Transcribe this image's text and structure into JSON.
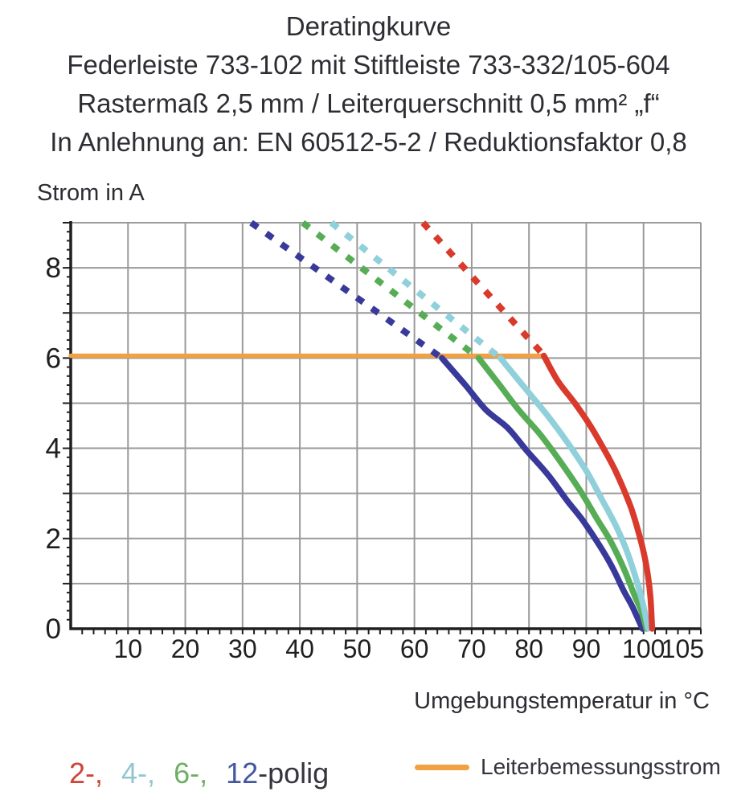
{
  "header": {
    "title": "Deratingkurve",
    "subtitle_lines": [
      "Federleiste 733-102 mit Stiftleiste 733-332/105-604",
      "Rastermaß 2,5 mm / Leiterquerschnitt 0,5 mm² „f“",
      "In Anlehnung an: EN 60512-5-2 / Reduktionsfaktor 0,8"
    ]
  },
  "legend": {
    "pole_items": [
      {
        "text": "2-,",
        "color": "#cf4438"
      },
      {
        "text": "4-,",
        "color": "#93c5d2"
      },
      {
        "text": "6-,",
        "color": "#6caf62"
      },
      {
        "text": "12",
        "color": "#4456a0"
      },
      {
        "text": "-polig",
        "color": "#35353d"
      }
    ],
    "current_label": "Leiterbemessungsstrom",
    "current_color": "#f0a143"
  },
  "chart_data": {
    "type": "line",
    "title": "Deratingkurve",
    "xlabel": "Umgebungstemperatur in °C",
    "ylabel": "Strom in A",
    "xlim": [
      0,
      110
    ],
    "ylim": [
      0,
      9
    ],
    "x_tick_labels": [
      10,
      20,
      30,
      40,
      50,
      60,
      70,
      80,
      90,
      100,
      105
    ],
    "y_tick_labels": [
      0,
      2,
      4,
      6,
      8
    ],
    "x_minor_tick_step": 2,
    "y_minor_tick_step": 0.2,
    "grid": {
      "x_step": 10,
      "y_step": 1,
      "color": "#9a9a9a",
      "on": true
    },
    "axis_color": "#1f1f1f",
    "text_color": "#2d2d33",
    "legend_position": "bottom",
    "series": [
      {
        "name": "Leiterbemessungsstrom",
        "color": "#f0a143",
        "style": "solid",
        "width": 5.5,
        "points": [
          [
            0,
            6.05
          ],
          [
            82.6,
            6.05
          ]
        ]
      },
      {
        "name": "12-polig gestrichelt",
        "color": "#38399a",
        "style": "dashed",
        "width": 8,
        "points": [
          [
            31.5,
            9
          ],
          [
            64.8,
            6.0
          ]
        ]
      },
      {
        "name": "6-polig gestrichelt",
        "color": "#57ad55",
        "style": "dashed",
        "width": 8,
        "points": [
          [
            40.5,
            9
          ],
          [
            71.2,
            6.0
          ]
        ]
      },
      {
        "name": "4-polig gestrichelt",
        "color": "#8fd0da",
        "style": "dashed",
        "width": 8,
        "points": [
          [
            45.5,
            9
          ],
          [
            75.0,
            6.0
          ]
        ]
      },
      {
        "name": "2-polig gestrichelt",
        "color": "#d93a2b",
        "style": "dashed",
        "width": 8,
        "points": [
          [
            61.5,
            9
          ],
          [
            82.3,
            6.1
          ]
        ]
      },
      {
        "name": "12-polig",
        "color": "#38399a",
        "style": "solid",
        "width": 7.5,
        "points": [
          [
            64.8,
            6.0
          ],
          [
            68.9,
            5.4
          ],
          [
            72.5,
            4.85
          ],
          [
            76.3,
            4.45
          ],
          [
            79.6,
            3.95
          ],
          [
            83.4,
            3.4
          ],
          [
            86.6,
            2.85
          ],
          [
            89.4,
            2.4
          ],
          [
            92.3,
            1.85
          ],
          [
            94.6,
            1.35
          ],
          [
            96.5,
            0.85
          ],
          [
            98.0,
            0.5
          ],
          [
            99.8,
            0
          ]
        ]
      },
      {
        "name": "6-polig",
        "color": "#57ad55",
        "style": "solid",
        "width": 7.5,
        "points": [
          [
            71.2,
            6.0
          ],
          [
            74.9,
            5.4
          ],
          [
            78.2,
            4.85
          ],
          [
            82.0,
            4.3
          ],
          [
            85.5,
            3.7
          ],
          [
            89.0,
            3.05
          ],
          [
            91.8,
            2.45
          ],
          [
            94.2,
            1.95
          ],
          [
            96.5,
            1.35
          ],
          [
            98.4,
            0.75
          ],
          [
            99.6,
            0.4
          ],
          [
            100.5,
            0
          ]
        ]
      },
      {
        "name": "4-polig",
        "color": "#8fd0da",
        "style": "solid",
        "width": 7.5,
        "points": [
          [
            75.0,
            6.0
          ],
          [
            79.2,
            5.35
          ],
          [
            83.4,
            4.7
          ],
          [
            86.6,
            4.15
          ],
          [
            90.0,
            3.5
          ],
          [
            92.8,
            2.85
          ],
          [
            95.1,
            2.3
          ],
          [
            97.0,
            1.75
          ],
          [
            98.6,
            1.15
          ],
          [
            99.8,
            0.6
          ],
          [
            100.8,
            0
          ]
        ]
      },
      {
        "name": "2-polig",
        "color": "#d93a2b",
        "style": "solid",
        "width": 7.5,
        "points": [
          [
            82.6,
            6.05
          ],
          [
            85.0,
            5.5
          ],
          [
            88.0,
            5.0
          ],
          [
            90.7,
            4.5
          ],
          [
            93.0,
            4.0
          ],
          [
            94.9,
            3.55
          ],
          [
            96.5,
            3.1
          ],
          [
            97.9,
            2.65
          ],
          [
            99.1,
            2.15
          ],
          [
            100.1,
            1.65
          ],
          [
            100.8,
            1.15
          ],
          [
            101.2,
            0.7
          ],
          [
            101.5,
            0
          ]
        ]
      }
    ]
  }
}
